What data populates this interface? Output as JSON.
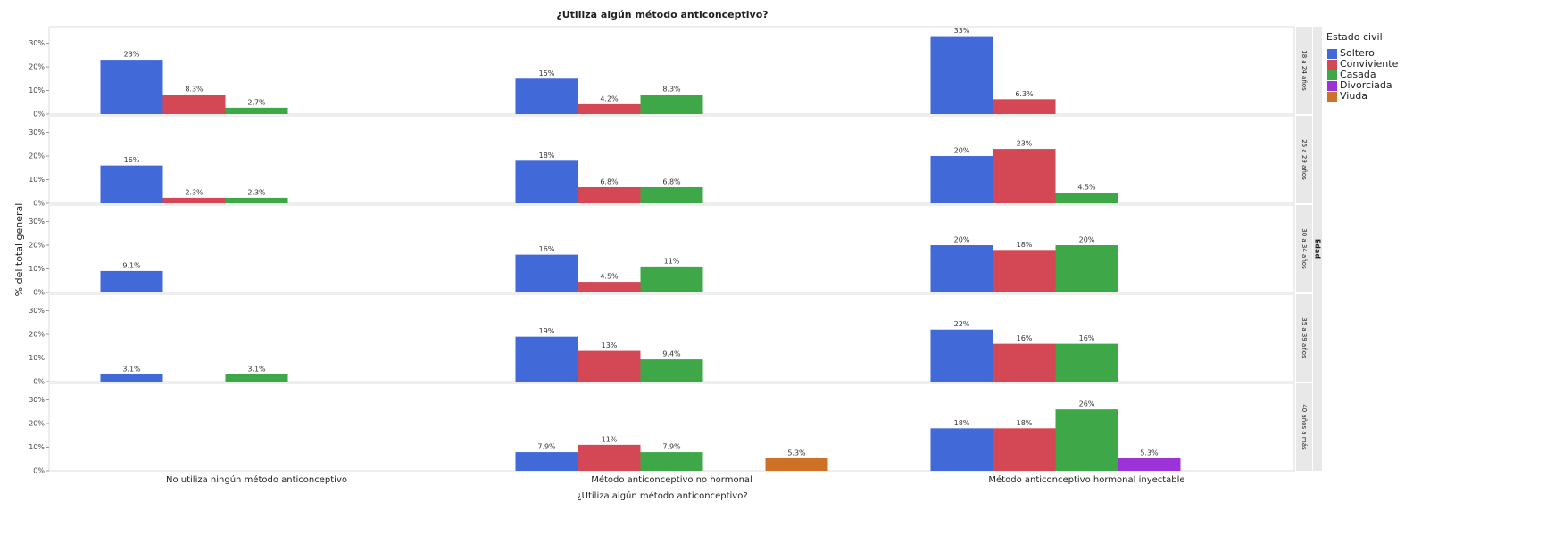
{
  "chart_data": {
    "type": "bar",
    "title": "¿Utiliza algún método anticonceptivo?",
    "xlabel": "¿Utiliza algún método anticonceptivo?",
    "ylabel": "% del total general",
    "facet_title": "Edad",
    "legend_title": "Estado civil",
    "categories": [
      "No utiliza ningún método anticonceptivo",
      "Método anticonceptivo no hormonal",
      "Método anticonceptivo hormonal inyectable"
    ],
    "series": [
      {
        "name": "Soltero",
        "color": "#4169d8"
      },
      {
        "name": "Conviviente",
        "color": "#d44856"
      },
      {
        "name": "Casada",
        "color": "#3ea848"
      },
      {
        "name": "Divorciada",
        "color": "#9b33d6"
      },
      {
        "name": "Viuda",
        "color": "#cc7126"
      }
    ],
    "ylim": [
      0,
      37
    ],
    "yticks": [
      {
        "value": 0,
        "label": "0%"
      },
      {
        "value": 10,
        "label": "10%"
      },
      {
        "value": 20,
        "label": "20%"
      },
      {
        "value": 30,
        "label": "30%"
      }
    ],
    "facets": [
      {
        "label": "18 a 24 años",
        "series": [
          {
            "values": [
              23,
              15,
              33
            ],
            "value_labels": [
              "23%",
              "15%",
              "33%"
            ]
          },
          {
            "values": [
              8.3,
              4.2,
              6.3
            ],
            "value_labels": [
              "8.3%",
              "4.2%",
              "6.3%"
            ]
          },
          {
            "values": [
              2.7,
              8.3,
              null
            ],
            "value_labels": [
              "2.7%",
              "8.3%",
              null
            ]
          },
          {
            "values": [
              null,
              null,
              null
            ],
            "value_labels": [
              null,
              null,
              null
            ]
          },
          {
            "values": [
              null,
              null,
              null
            ],
            "value_labels": [
              null,
              null,
              null
            ]
          }
        ]
      },
      {
        "label": "25 a 29 años",
        "series": [
          {
            "values": [
              16,
              18,
              20
            ],
            "value_labels": [
              "16%",
              "18%",
              "20%"
            ]
          },
          {
            "values": [
              2.3,
              6.8,
              23
            ],
            "value_labels": [
              "2.3%",
              "6.8%",
              "23%"
            ]
          },
          {
            "values": [
              2.3,
              6.8,
              4.5
            ],
            "value_labels": [
              "2.3%",
              "6.8%",
              "4.5%"
            ]
          },
          {
            "values": [
              null,
              null,
              null
            ],
            "value_labels": [
              null,
              null,
              null
            ]
          },
          {
            "values": [
              null,
              null,
              null
            ],
            "value_labels": [
              null,
              null,
              null
            ]
          }
        ]
      },
      {
        "label": "30 a 34 años",
        "series": [
          {
            "values": [
              9.1,
              16,
              20
            ],
            "value_labels": [
              "9.1%",
              "16%",
              "20%"
            ]
          },
          {
            "values": [
              null,
              4.5,
              18
            ],
            "value_labels": [
              null,
              "4.5%",
              "18%"
            ]
          },
          {
            "values": [
              null,
              11,
              20
            ],
            "value_labels": [
              null,
              "11%",
              "20%"
            ]
          },
          {
            "values": [
              null,
              null,
              null
            ],
            "value_labels": [
              null,
              null,
              null
            ]
          },
          {
            "values": [
              null,
              null,
              null
            ],
            "value_labels": [
              null,
              null,
              null
            ]
          }
        ]
      },
      {
        "label": "35 a 39 años",
        "series": [
          {
            "values": [
              3.1,
              19,
              22
            ],
            "value_labels": [
              "3.1%",
              "19%",
              "22%"
            ]
          },
          {
            "values": [
              null,
              13,
              16
            ],
            "value_labels": [
              null,
              "13%",
              "16%"
            ]
          },
          {
            "values": [
              3.1,
              9.4,
              16
            ],
            "value_labels": [
              "3.1%",
              "9.4%",
              "16%"
            ]
          },
          {
            "values": [
              null,
              null,
              null
            ],
            "value_labels": [
              null,
              null,
              null
            ]
          },
          {
            "values": [
              null,
              null,
              null
            ],
            "value_labels": [
              null,
              null,
              null
            ]
          }
        ]
      },
      {
        "label": "40 años a más",
        "series": [
          {
            "values": [
              null,
              7.9,
              18
            ],
            "value_labels": [
              null,
              "7.9%",
              "18%"
            ]
          },
          {
            "values": [
              null,
              11,
              18
            ],
            "value_labels": [
              null,
              "11%",
              "18%"
            ]
          },
          {
            "values": [
              null,
              7.9,
              26
            ],
            "value_labels": [
              null,
              "7.9%",
              "26%"
            ]
          },
          {
            "values": [
              null,
              null,
              5.3
            ],
            "value_labels": [
              null,
              null,
              "5.3%"
            ]
          },
          {
            "values": [
              null,
              5.3,
              null
            ],
            "value_labels": [
              null,
              "5.3%",
              null
            ]
          }
        ]
      }
    ]
  }
}
